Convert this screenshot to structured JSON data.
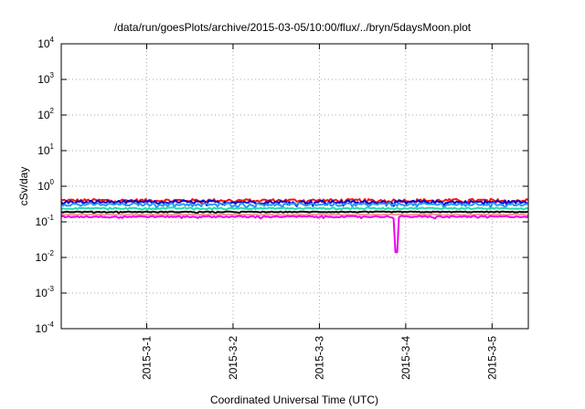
{
  "chart_data": {
    "type": "line",
    "title": "/data/run/goesPlots/archive/2015-03-05/10:00/flux/../bryn/5daysMoon.plot",
    "xlabel": "Coordinated Universal Time (UTC)",
    "ylabel": "cSv/day",
    "y_scale": "log",
    "ylim": [
      0.0001,
      10000
    ],
    "y_ticks": [
      {
        "base": "10",
        "exp": "-4"
      },
      {
        "base": "10",
        "exp": "-3"
      },
      {
        "base": "10",
        "exp": "-2"
      },
      {
        "base": "10",
        "exp": "-1"
      },
      {
        "base": "10",
        "exp": "0"
      },
      {
        "base": "10",
        "exp": "1"
      },
      {
        "base": "10",
        "exp": "2"
      },
      {
        "base": "10",
        "exp": "3"
      },
      {
        "base": "10",
        "exp": "4"
      }
    ],
    "xlim_days": [
      -0.99,
      4.42
    ],
    "x_ticks": [
      "2015-3-1",
      "2015-3-2",
      "2015-3-3",
      "2015-3-4",
      "2015-3-5"
    ],
    "grid": true,
    "series": [
      {
        "color": "#ff1010",
        "level": 0.4,
        "noise": 0.1
      },
      {
        "color": "#0000cc",
        "level": 0.36,
        "noise": 0.1
      },
      {
        "color": "#2299ff",
        "level": 0.31,
        "noise": 0.09
      },
      {
        "color": "#22ddaa",
        "level": 0.24,
        "noise": 0.05
      },
      {
        "color": "#000000",
        "level": 0.19,
        "noise": 0.03
      },
      {
        "color": "#ff9999",
        "level": 0.16,
        "noise": 0.03
      },
      {
        "color": "#ee00ee",
        "level": 0.14,
        "noise": 0.05,
        "dip_day": 2.89,
        "dip_value": 0.014
      }
    ]
  }
}
